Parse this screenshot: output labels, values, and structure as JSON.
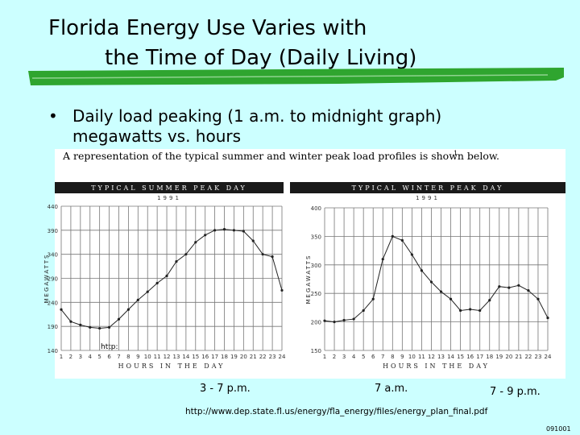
{
  "slide": {
    "title_lines": [
      "Florida Energy Use Varies with",
      "the Time of Day (Daily Living)"
    ],
    "bullet_lines": [
      "Daily load peaking (1 a.m. to midnight graph)",
      "megawatts vs. hours"
    ],
    "caption": "A representation of the typical summer and winter peak load profiles is shown below.",
    "footnote_mark": "1",
    "link_fragment": "http:",
    "annotations": [
      "3 - 7 p.m.",
      "7 a.m.",
      "7 - 9 p.m."
    ],
    "source": "http://www.dep.state.fl.us/energy/fla_energy/files/energy_plan_final.pdf",
    "slide_id": "091001"
  },
  "chart_data": [
    {
      "type": "line",
      "title": "TYPICAL SUMMER PEAK DAY",
      "subtitle": "1991",
      "ylabel": "MEGAWATTS",
      "xlabel": "HOURS IN THE DAY",
      "grid": true,
      "color": "#222222",
      "x": [
        1,
        2,
        3,
        4,
        5,
        6,
        7,
        8,
        9,
        10,
        11,
        12,
        13,
        14,
        15,
        16,
        17,
        18,
        19,
        20,
        21,
        22,
        23,
        24
      ],
      "values": [
        225,
        200,
        193,
        188,
        186,
        188,
        205,
        225,
        245,
        262,
        280,
        295,
        325,
        340,
        365,
        380,
        390,
        392,
        390,
        388,
        368,
        340,
        335,
        265
      ],
      "xlim": [
        1,
        24
      ],
      "xticks": [
        1,
        2,
        3,
        4,
        5,
        6,
        7,
        8,
        9,
        10,
        11,
        12,
        13,
        14,
        15,
        16,
        17,
        18,
        19,
        20,
        21,
        22,
        23,
        24
      ],
      "ylim": [
        140,
        440
      ],
      "yticks": [
        140,
        190,
        240,
        290,
        340,
        390,
        440
      ]
    },
    {
      "type": "line",
      "title": "TYPICAL WINTER PEAK DAY",
      "subtitle": "1991",
      "ylabel": "MEGAWATTS",
      "xlabel": "HOURS IN THE DAY",
      "grid": true,
      "color": "#222222",
      "x": [
        1,
        2,
        3,
        4,
        5,
        6,
        7,
        8,
        9,
        10,
        11,
        12,
        13,
        14,
        15,
        16,
        17,
        18,
        19,
        20,
        21,
        22,
        23,
        24
      ],
      "values": [
        202,
        200,
        203,
        205,
        220,
        240,
        310,
        350,
        343,
        318,
        290,
        270,
        253,
        240,
        220,
        222,
        220,
        238,
        262,
        260,
        264,
        255,
        240,
        207
      ],
      "xlim": [
        1,
        24
      ],
      "xticks": [
        1,
        2,
        3,
        4,
        5,
        6,
        7,
        8,
        9,
        10,
        11,
        12,
        13,
        14,
        15,
        16,
        17,
        18,
        19,
        20,
        21,
        22,
        23,
        24
      ],
      "ylim": [
        150,
        400
      ],
      "yticks": [
        150,
        200,
        250,
        300,
        350,
        400
      ]
    }
  ]
}
